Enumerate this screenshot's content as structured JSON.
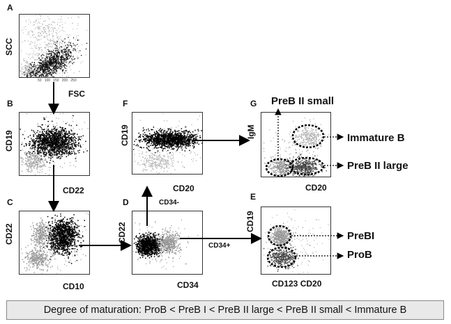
{
  "panels": {
    "A": {
      "letter": "A",
      "x_label": "FSC",
      "y_label": "SCC",
      "tick_labels": [
        "50",
        "100",
        "150",
        "200",
        "250"
      ]
    },
    "B": {
      "letter": "B",
      "x_label": "CD22",
      "y_label": "CD19"
    },
    "C": {
      "letter": "C",
      "x_label": "CD10",
      "y_label": "CD22"
    },
    "D": {
      "letter": "D",
      "x_label": "CD34",
      "y_label": "CD22"
    },
    "E": {
      "letter": "E",
      "x_label": "CD123 CD20",
      "y_label": "CD19"
    },
    "F": {
      "letter": "F",
      "x_label": "CD20",
      "y_label": "CD19"
    },
    "G": {
      "letter": "G",
      "x_label": "CD20",
      "y_label": "IgM"
    }
  },
  "gate_labels": {
    "preb2_small": "PreB II small",
    "immature_b": "Immature B",
    "preb2_large": "PreB II large",
    "prebi": "PreBI",
    "prob": "ProB"
  },
  "arrow_labels": {
    "cd34_neg": "CD34-",
    "cd34_pos": "CD34+"
  },
  "footer": "Degree of maturation:  ProB < PreB I < PreB II large < PreB II small < Immature B"
}
